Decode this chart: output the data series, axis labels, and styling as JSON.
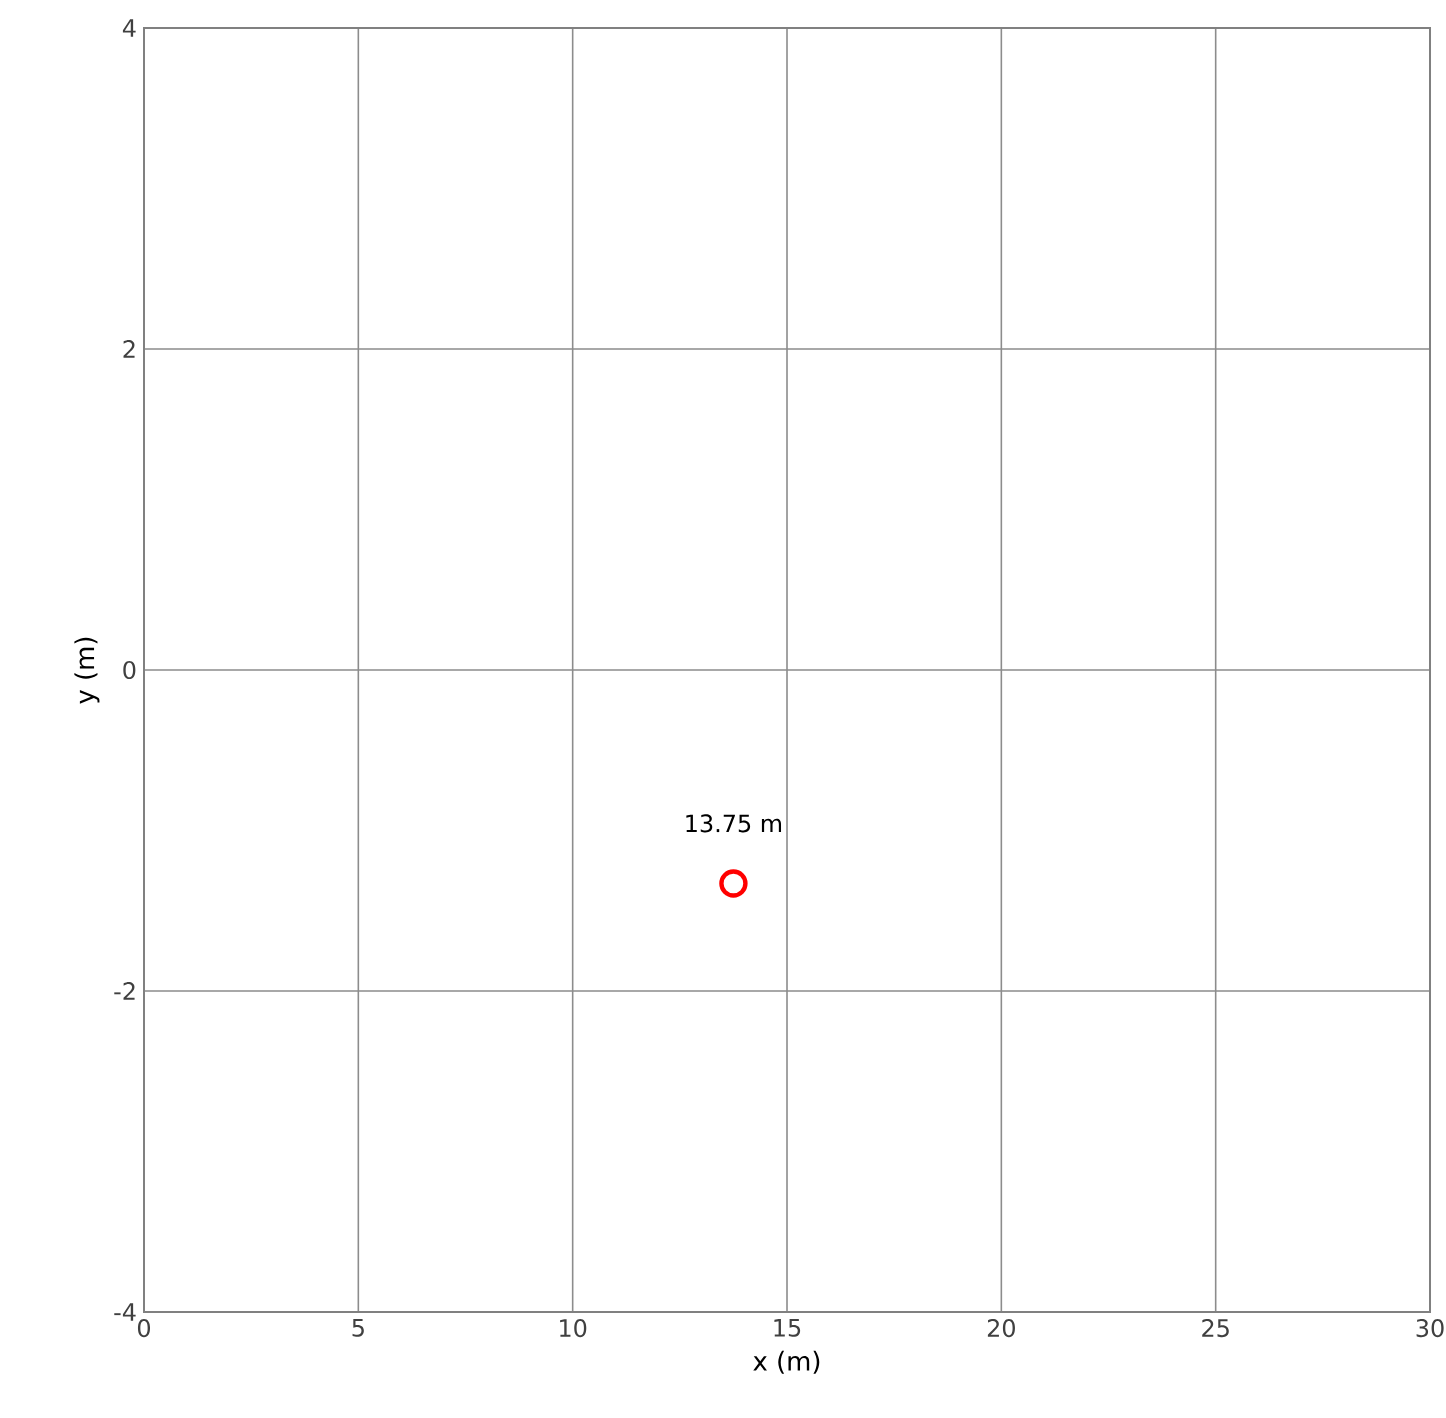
{
  "chart_data": {
    "type": "scatter",
    "xlabel": "x (m)",
    "ylabel": "y (m)",
    "x": [
      13.75
    ],
    "values": [
      -1.33
    ],
    "color": "#ff0000",
    "marker": "circle",
    "xlim": [
      0,
      30
    ],
    "ylim": [
      -4,
      4
    ],
    "xticks": [
      0,
      5,
      10,
      15,
      20,
      25,
      30
    ],
    "yticks": [
      -4,
      -2,
      0,
      2,
      4
    ],
    "grid": true,
    "annotations": [
      {
        "text": "13.75 m",
        "x": 13.75,
        "y": -1.33
      }
    ]
  }
}
